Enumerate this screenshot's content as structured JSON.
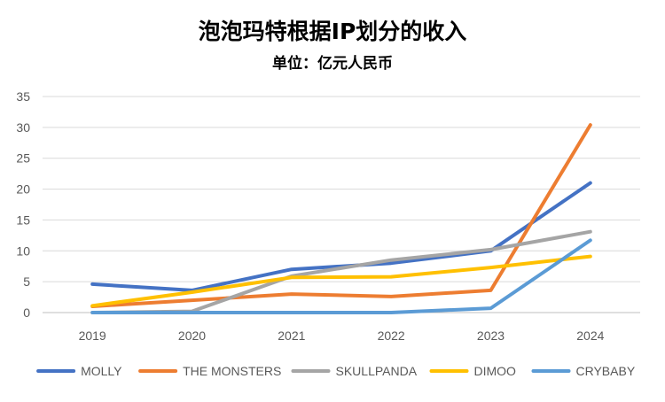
{
  "chart_data": {
    "type": "line",
    "title": "泡泡玛特根据IP划分的收入",
    "subtitle": "单位：亿元人民币",
    "categories": [
      "2019",
      "2020",
      "2021",
      "2022",
      "2023",
      "2024"
    ],
    "ylim": [
      0,
      35
    ],
    "yticks": [
      "0",
      "5",
      "10",
      "15",
      "20",
      "25",
      "30",
      "35"
    ],
    "grid": true,
    "legend_position": "bottom",
    "series": [
      {
        "name": "MOLLY",
        "color": "#4472C4",
        "values": [
          4.6,
          3.6,
          7.0,
          8.0,
          10.0,
          21.0
        ]
      },
      {
        "name": "THE MONSTERS",
        "color": "#ED7D31",
        "values": [
          1.0,
          2.0,
          3.0,
          2.6,
          3.6,
          30.4
        ]
      },
      {
        "name": "SKULLPANDA",
        "color": "#A5A5A5",
        "values": [
          0.0,
          0.2,
          5.9,
          8.5,
          10.2,
          13.1
        ]
      },
      {
        "name": "DIMOO",
        "color": "#FFC000",
        "values": [
          1.1,
          3.3,
          5.7,
          5.8,
          7.3,
          9.1
        ]
      },
      {
        "name": "CRYBABY",
        "color": "#5B9BD5",
        "values": [
          0.0,
          0.0,
          0.0,
          0.0,
          0.7,
          11.7
        ]
      }
    ]
  }
}
